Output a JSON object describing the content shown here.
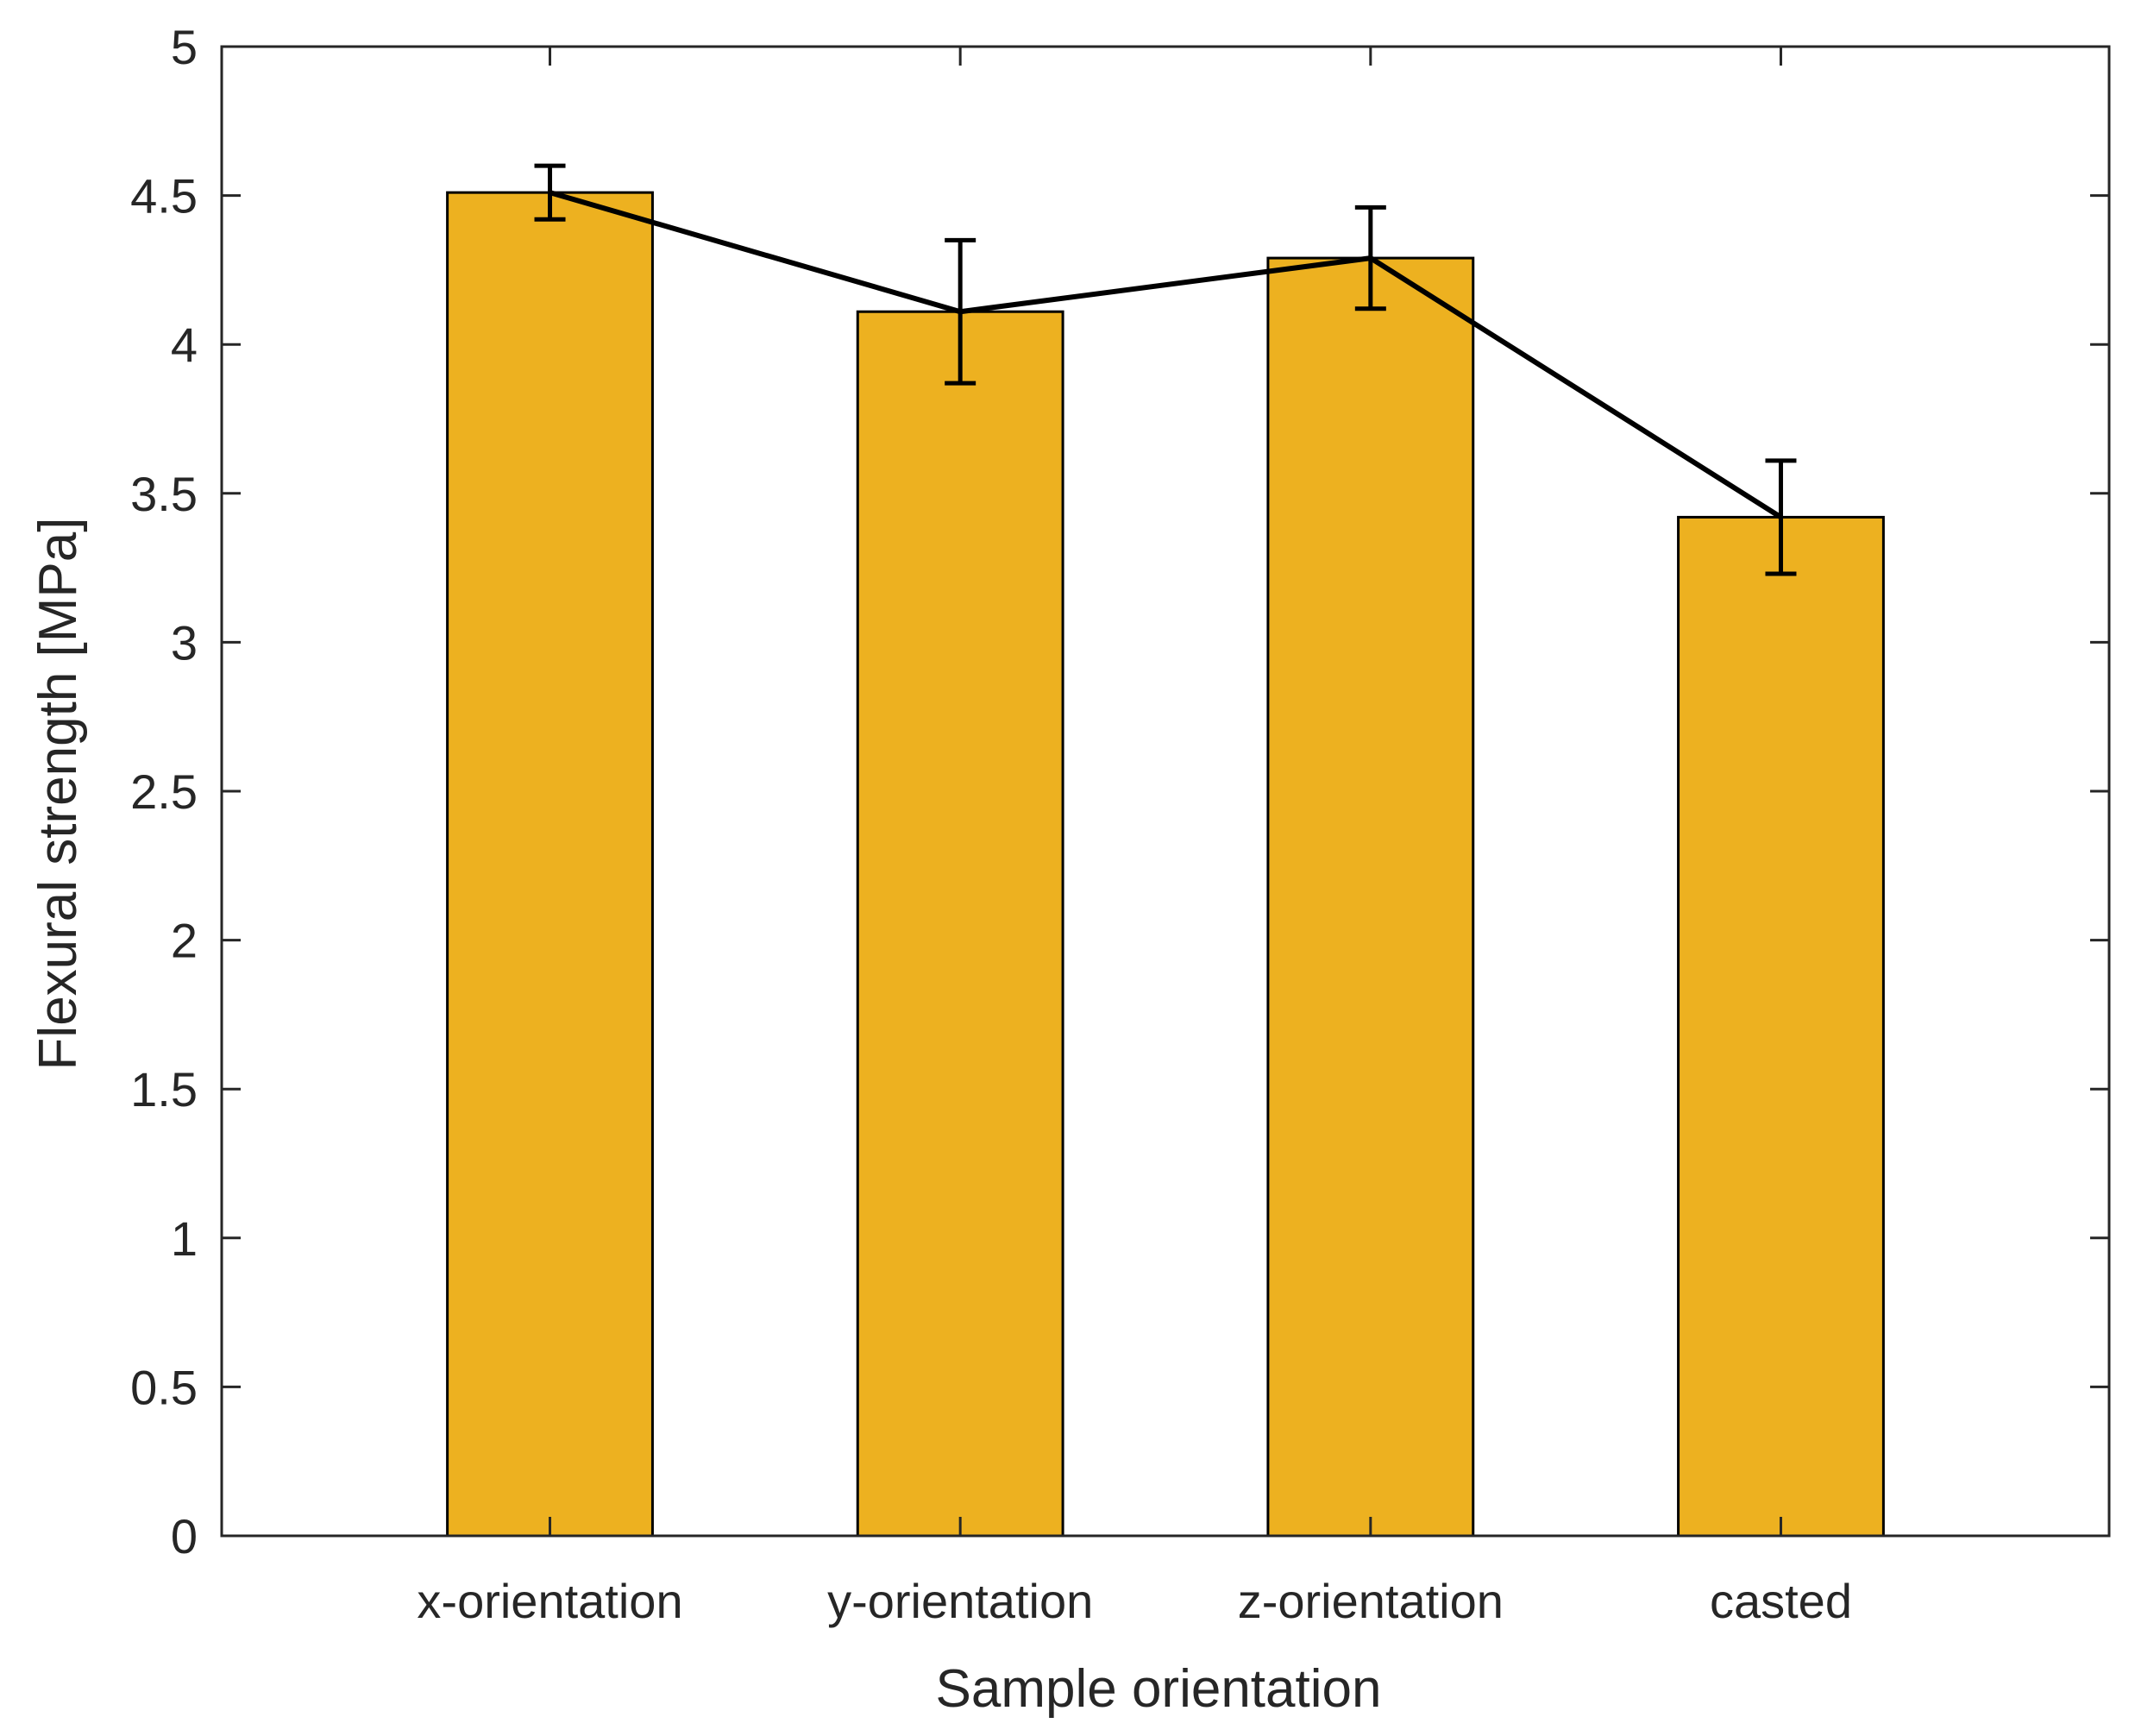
{
  "chart_data": {
    "type": "bar",
    "title": "",
    "categories": [
      "x-orientation",
      "y-orientation",
      "z-orientation",
      "casted"
    ],
    "series": [
      {
        "name": "Flexural strength",
        "values": [
          4.51,
          4.11,
          4.29,
          3.42
        ],
        "error": [
          0.09,
          0.24,
          0.17,
          0.19
        ]
      }
    ],
    "line_overlay": true,
    "xlabel": "Sample orientation",
    "ylabel": "Flexural strength [MPa]",
    "ylim": [
      0,
      5
    ],
    "yticks": [
      "0",
      "0.5",
      "1",
      "1.5",
      "2",
      "2.5",
      "3",
      "3.5",
      "4",
      "4.5",
      "5"
    ],
    "grid": false,
    "colors": {
      "bar_fill": "#EDB120",
      "bar_edge": "#000000",
      "line": "#000000",
      "axis": "#262626"
    }
  }
}
